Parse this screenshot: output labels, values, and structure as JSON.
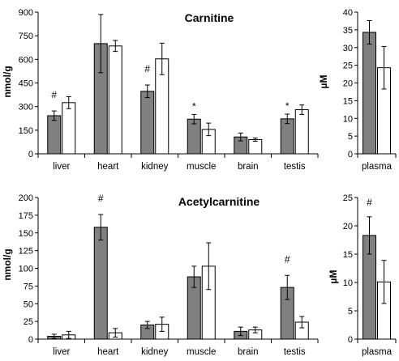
{
  "chart_data": [
    {
      "type": "bar",
      "title": "Carnitine",
      "ylabel": "nmol/g",
      "ylim": [
        0,
        900
      ],
      "yticks": [
        0,
        150,
        300,
        450,
        600,
        750,
        900
      ],
      "categories": [
        "liver",
        "heart",
        "kidney",
        "muscle",
        "brain",
        "testis"
      ],
      "series": [
        {
          "color": "#808080",
          "values": [
            242,
            700,
            397,
            220,
            107,
            222
          ],
          "errors": [
            30,
            185,
            40,
            30,
            25,
            30
          ]
        },
        {
          "color": "#ffffff",
          "values": [
            325,
            685,
            603,
            155,
            90,
            280
          ],
          "errors": [
            38,
            35,
            100,
            40,
            10,
            30
          ]
        }
      ],
      "annotations": [
        {
          "category": 0,
          "text": "#"
        },
        {
          "category": 2,
          "text": "#"
        },
        {
          "category": 3,
          "text": "*"
        },
        {
          "category": 5,
          "text": "*"
        }
      ]
    },
    {
      "type": "bar",
      "title": "",
      "ylabel": "µM",
      "ylim": [
        0,
        40
      ],
      "yticks": [
        0,
        5,
        10,
        15,
        20,
        25,
        30,
        35,
        40
      ],
      "categories": [
        "plasma"
      ],
      "series": [
        {
          "color": "#808080",
          "values": [
            34.3
          ],
          "errors": [
            3.3
          ]
        },
        {
          "color": "#ffffff",
          "values": [
            24.3
          ],
          "errors": [
            6
          ]
        }
      ],
      "annotations": []
    },
    {
      "type": "bar",
      "title": "Acetylcarnitine",
      "ylabel": "nmol/g",
      "ylim": [
        0,
        200
      ],
      "yticks": [
        0,
        25,
        50,
        75,
        100,
        125,
        150,
        175,
        200
      ],
      "categories": [
        "liver",
        "heart",
        "kidney",
        "muscle",
        "brain",
        "testis"
      ],
      "series": [
        {
          "color": "#808080",
          "values": [
            4,
            158,
            20,
            88,
            11,
            73
          ],
          "errors": [
            3,
            18,
            5,
            15,
            6,
            17
          ]
        },
        {
          "color": "#ffffff",
          "values": [
            6,
            9,
            21,
            103,
            13,
            24
          ],
          "errors": [
            5,
            6,
            10,
            33,
            4,
            8
          ]
        }
      ],
      "annotations": [
        {
          "category": 1,
          "text": "#"
        },
        {
          "category": 5,
          "text": "#"
        }
      ]
    },
    {
      "type": "bar",
      "title": "",
      "ylabel": "µM",
      "ylim": [
        0,
        25
      ],
      "yticks": [
        0,
        5,
        10,
        15,
        20,
        25
      ],
      "categories": [
        "plasma"
      ],
      "series": [
        {
          "color": "#808080",
          "values": [
            18.3
          ],
          "errors": [
            3.3
          ]
        },
        {
          "color": "#ffffff",
          "values": [
            10.1
          ],
          "errors": [
            3.8
          ]
        }
      ],
      "annotations": [
        {
          "category": 0,
          "text": "#"
        }
      ]
    }
  ]
}
